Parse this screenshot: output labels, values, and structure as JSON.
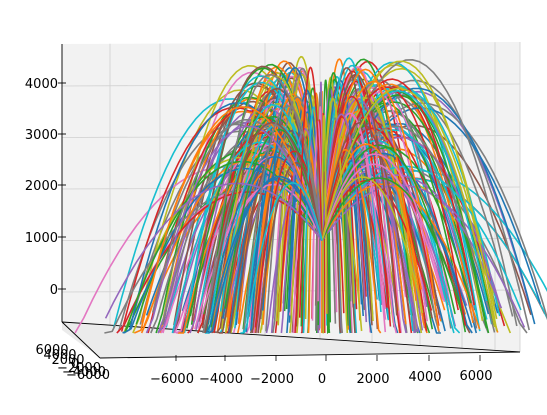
{
  "chart_data": {
    "type": "line",
    "projection": "3d",
    "description_note": "",
    "title": "",
    "xlabel": "",
    "ylabel": "",
    "zlabel": "",
    "x_ticks": [
      "−6000",
      "−4000",
      "−2000",
      "0",
      "2000",
      "4000",
      "6000"
    ],
    "y_ticks": [
      "6000",
      "4000",
      "2000",
      "0",
      "−2000",
      "−4000",
      "−6000"
    ],
    "z_ticks": [
      "0",
      "1000",
      "2000",
      "3000",
      "4000"
    ],
    "xlim": [
      -7500,
      7500
    ],
    "ylim": [
      -7500,
      7500
    ],
    "zlim": [
      -600,
      4700
    ],
    "grid": true,
    "series_count": 400,
    "trajectory": {
      "origin": [
        0,
        0,
        1000
      ],
      "apex_height_range": [
        2000,
        4500
      ],
      "horizontal_range": [
        3000,
        7000
      ],
      "z_end": -1000
    },
    "palette": [
      "#1f77b4",
      "#ff7f0e",
      "#2ca02c",
      "#d62728",
      "#9467bd",
      "#8c564b",
      "#e377c2",
      "#7f7f7f",
      "#bcbd22",
      "#17becf"
    ]
  }
}
